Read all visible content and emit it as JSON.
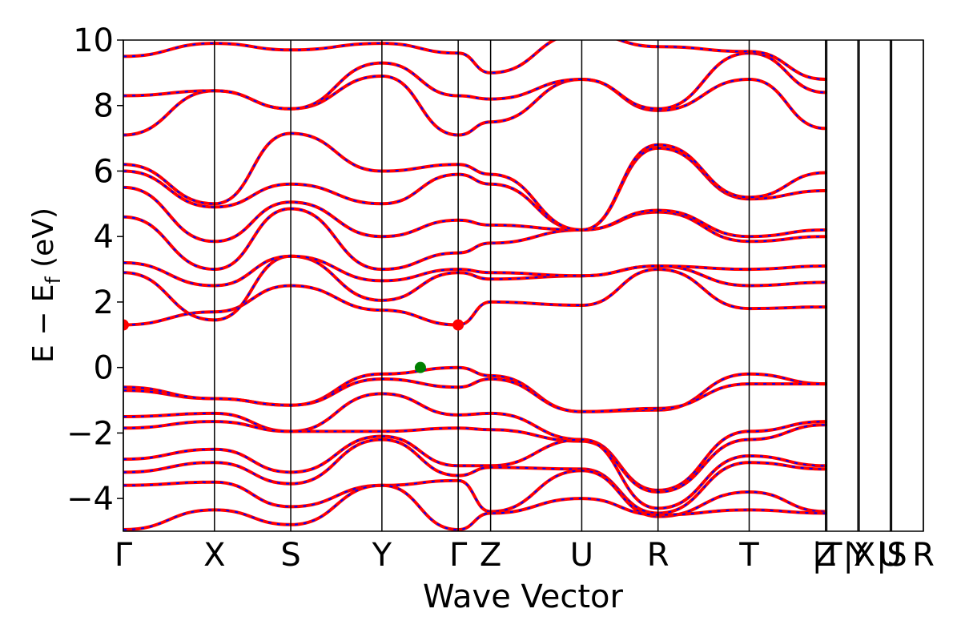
{
  "chart_data": {
    "type": "line",
    "xlabel": "Wave Vector",
    "ylabel_main": "E  −  E",
    "ylabel_sub": "f",
    "ylabel_unit": " (eV)",
    "ylim": [
      -5,
      10
    ],
    "yticks": [
      10,
      8,
      6,
      4,
      2,
      0,
      -2,
      -4
    ],
    "xlim": [
      0,
      11.85
    ],
    "kpoints": [
      {
        "label": "Γ",
        "x": 0.0
      },
      {
        "label": "X",
        "x": 1.35
      },
      {
        "label": "S",
        "x": 2.48
      },
      {
        "label": "Y",
        "x": 3.83
      },
      {
        "label": "Γ",
        "x": 4.96
      },
      {
        "label": "Z",
        "x": 5.44
      },
      {
        "label": "U",
        "x": 6.79
      },
      {
        "label": "R",
        "x": 7.92
      },
      {
        "label": "T",
        "x": 9.27
      },
      {
        "label": "Z",
        "x": 10.4
      },
      {
        "label": "|T",
        "x": 10.42
      },
      {
        "label": "Y",
        "x": 10.88
      },
      {
        "label": "|X",
        "x": 10.9
      },
      {
        "label": "U",
        "x": 11.36
      },
      {
        "label": "|S",
        "x": 11.38
      },
      {
        "label": "R",
        "x": 11.85
      }
    ],
    "series_style": {
      "up_color": "#ff0000",
      "down_color": "#0000ff",
      "up_width": 4,
      "down_width": 2
    },
    "bands": [
      {
        "x": [
          0,
          1.35,
          2.48,
          3.83,
          4.96,
          5.44,
          6.79,
          7.92,
          9.27,
          10.4
        ],
        "y": [
          -0.7,
          -0.95,
          -1.15,
          -0.2,
          0.0,
          -0.25,
          -1.35,
          -1.3,
          -0.2,
          -0.5
        ]
      },
      {
        "x": [
          0,
          1.35,
          2.48,
          3.83,
          4.96,
          5.44,
          6.79,
          7.92,
          9.27,
          10.4
        ],
        "y": [
          -0.6,
          -0.95,
          -1.15,
          -0.35,
          -0.6,
          -0.35,
          -1.35,
          -1.25,
          -0.5,
          -0.5
        ]
      },
      {
        "x": [
          0,
          1.35,
          2.48,
          3.83,
          4.96,
          5.44,
          6.79,
          7.92,
          9.27,
          10.4
        ],
        "y": [
          -1.5,
          -1.4,
          -1.95,
          -0.8,
          -1.45,
          -1.4,
          -2.2,
          -3.75,
          -1.95,
          -1.65
        ]
      },
      {
        "x": [
          0,
          1.35,
          2.48,
          3.83,
          4.96,
          5.44,
          6.79,
          7.92,
          9.27,
          10.4
        ],
        "y": [
          -1.85,
          -1.65,
          -1.95,
          -1.95,
          -1.85,
          -1.9,
          -2.25,
          -3.8,
          -2.2,
          -1.75
        ]
      },
      {
        "x": [
          0,
          1.35,
          2.48,
          3.83,
          4.96,
          5.44,
          6.79,
          7.92,
          9.27,
          10.4
        ],
        "y": [
          -2.8,
          -2.5,
          -3.2,
          -2.1,
          -3.0,
          -3.0,
          -2.2,
          -4.3,
          -2.7,
          -3.0
        ]
      },
      {
        "x": [
          0,
          1.35,
          2.48,
          3.83,
          4.96,
          5.44,
          6.79,
          7.92,
          9.27,
          10.4
        ],
        "y": [
          -3.2,
          -2.9,
          -3.55,
          -2.2,
          -3.3,
          -3.05,
          -3.1,
          -4.45,
          -2.9,
          -3.1
        ]
      },
      {
        "x": [
          0,
          1.35,
          2.48,
          3.83,
          4.96,
          5.44,
          6.79,
          7.92,
          9.27,
          10.4
        ],
        "y": [
          -3.6,
          -3.5,
          -4.25,
          -3.6,
          -3.45,
          -4.4,
          -3.15,
          -4.55,
          -3.8,
          -4.4
        ]
      },
      {
        "x": [
          0,
          1.35,
          2.48,
          3.83,
          4.96,
          5.44,
          6.79,
          7.92,
          9.27,
          10.4
        ],
        "y": [
          -4.95,
          -4.35,
          -4.8,
          -3.6,
          -4.95,
          -4.45,
          -4.0,
          -4.5,
          -4.35,
          -4.45
        ]
      },
      {
        "x": [
          0,
          1.35,
          2.48,
          3.83,
          4.96,
          5.44,
          6.79,
          7.92,
          9.27,
          10.4
        ],
        "y": [
          1.3,
          1.7,
          2.5,
          1.75,
          1.3,
          2.0,
          1.9,
          3.0,
          1.8,
          1.85
        ]
      },
      {
        "x": [
          0,
          1.35,
          2.48,
          3.83,
          4.96,
          5.44,
          6.79,
          7.92,
          9.27,
          10.4
        ],
        "y": [
          2.9,
          1.45,
          3.4,
          2.05,
          2.9,
          2.7,
          2.8,
          3.1,
          2.5,
          2.6
        ]
      },
      {
        "x": [
          0,
          1.35,
          2.48,
          3.83,
          4.96,
          5.44,
          6.79,
          7.92,
          9.27,
          10.4
        ],
        "y": [
          3.2,
          2.5,
          3.4,
          2.65,
          3.0,
          2.9,
          2.8,
          3.1,
          3.0,
          3.1
        ]
      },
      {
        "x": [
          0,
          1.35,
          2.48,
          3.83,
          4.96,
          5.44,
          6.79,
          7.92,
          9.27,
          10.4
        ],
        "y": [
          4.6,
          3.0,
          4.85,
          3.0,
          3.5,
          3.8,
          4.2,
          4.75,
          3.85,
          4.0
        ]
      },
      {
        "x": [
          0,
          1.35,
          2.48,
          3.83,
          4.96,
          5.44,
          6.79,
          7.92,
          9.27,
          10.4
        ],
        "y": [
          5.5,
          3.85,
          5.05,
          4.0,
          4.5,
          4.35,
          4.2,
          4.8,
          4.0,
          4.2
        ]
      },
      {
        "x": [
          0,
          1.35,
          2.48,
          3.83,
          4.96,
          5.44,
          6.79,
          7.92,
          9.27,
          10.4
        ],
        "y": [
          6.0,
          4.9,
          5.6,
          5.0,
          5.9,
          5.6,
          4.2,
          6.7,
          5.15,
          5.4
        ]
      },
      {
        "x": [
          0,
          1.35,
          2.48,
          3.83,
          4.96,
          5.44,
          6.79,
          7.92,
          9.27,
          10.4
        ],
        "y": [
          6.2,
          5.0,
          7.15,
          6.0,
          6.2,
          5.9,
          4.2,
          6.8,
          5.2,
          5.95
        ]
      },
      {
        "x": [
          0,
          1.35,
          2.48,
          3.83,
          4.96,
          5.44,
          6.79,
          7.92,
          9.27,
          10.4
        ],
        "y": [
          7.1,
          8.45,
          7.9,
          8.9,
          7.1,
          7.5,
          8.8,
          7.85,
          8.8,
          7.3
        ]
      },
      {
        "x": [
          0,
          1.35,
          2.48,
          3.83,
          4.96,
          5.44,
          6.79,
          7.92,
          9.27,
          10.4
        ],
        "y": [
          8.3,
          8.45,
          7.9,
          9.3,
          8.3,
          8.2,
          8.8,
          7.9,
          9.6,
          8.4
        ]
      },
      {
        "x": [
          0,
          1.35,
          2.48,
          3.83,
          4.96,
          5.44,
          6.79,
          7.92,
          9.27,
          10.4
        ],
        "y": [
          9.5,
          9.9,
          9.7,
          9.9,
          9.6,
          9.0,
          10.2,
          9.8,
          9.65,
          8.8
        ]
      }
    ],
    "markers": [
      {
        "x": 0.0,
        "y": 1.3,
        "color": "#ff0000"
      },
      {
        "x": 4.96,
        "y": 1.3,
        "color": "#ff0000"
      },
      {
        "x": 4.4,
        "y": 0.0,
        "color": "#008000"
      }
    ]
  }
}
